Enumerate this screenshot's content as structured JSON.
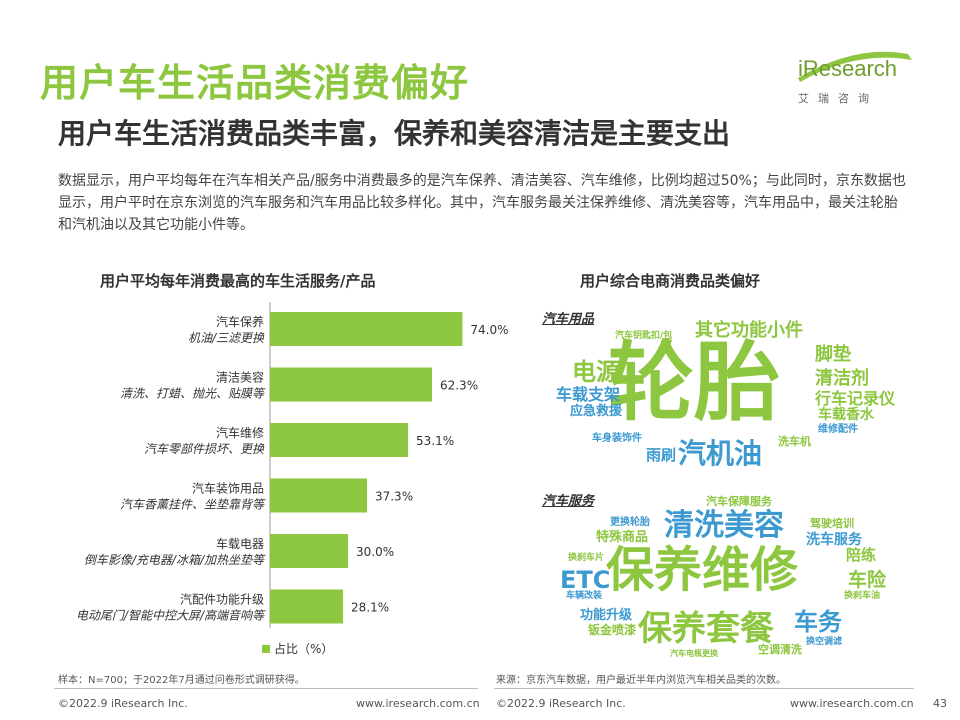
{
  "page": {
    "title": "用户车生活品类消费偏好",
    "subtitle": "用户车生活消费品类丰富，保养和美容清洁是主要支出",
    "description": "数据显示，用户平均每年在汽车相关产品/服务中消费最多的是汽车保养、清洁美容、汽车维修，比例均超过50%；与此同时，京东数据也显示，用户平时在京东浏览的汽车服务和汽车用品比较多样化。其中，汽车服务最关注保养维修、清洗美容等，汽车用品中，最关注轮胎和汽机油以及其它功能小件等。",
    "logo_text": "iResearch",
    "logo_sub": "艾瑞咨询",
    "page_number": "43"
  },
  "chart_data": [
    {
      "type": "bar",
      "orientation": "horizontal",
      "title": "用户平均每年消费最高的车生活服务/产品",
      "categories": [
        "汽车保养",
        "清洁美容",
        "汽车维修",
        "汽车装饰用品",
        "车载电器",
        "汽配件功能升级"
      ],
      "category_details": [
        "机油/三滤更换",
        "清洗、打蜡、抛光、贴膜等",
        "汽车零部件损坏、更换",
        "汽车香薰挂件、坐垫靠背等",
        "倒车影像/充电器/冰箱/加热坐垫等",
        "电动尾门/智能中控大屏/高端音响等"
      ],
      "series": [
        {
          "name": "占比（%）",
          "values": [
            74.0,
            62.3,
            53.1,
            37.3,
            30.0,
            28.1
          ],
          "labels": [
            "74.0%",
            "62.3%",
            "53.1%",
            "37.3%",
            "30.0%",
            "28.1%"
          ]
        }
      ],
      "xlim": [
        0,
        100
      ],
      "legend": "bottom",
      "color": "#8dc63f"
    },
    {
      "type": "wordcloud",
      "title": "用户综合电商消费品类偏好",
      "groups": [
        {
          "label": "汽车用品",
          "words": [
            {
              "text": "轮胎",
              "color": "#8dc63f"
            },
            {
              "text": "汽机油",
              "color": "#3d9ad1"
            },
            {
              "text": "其它功能小件",
              "color": "#8dc63f"
            },
            {
              "text": "电源",
              "color": "#8dc63f"
            },
            {
              "text": "脚垫",
              "color": "#8dc63f"
            },
            {
              "text": "清洁剂",
              "color": "#8dc63f"
            },
            {
              "text": "行车记录仪",
              "color": "#8dc63f"
            },
            {
              "text": "车载支架",
              "color": "#3d9ad1"
            },
            {
              "text": "应急救援",
              "color": "#3d9ad1"
            },
            {
              "text": "车载香水",
              "color": "#8dc63f"
            },
            {
              "text": "维修配件",
              "color": "#3d9ad1"
            },
            {
              "text": "洗车机",
              "color": "#8dc63f"
            },
            {
              "text": "雨刷",
              "color": "#3d9ad1"
            },
            {
              "text": "车身装饰件",
              "color": "#3d9ad1"
            },
            {
              "text": "汽车钥匙扣/包",
              "color": "#8dc63f"
            }
          ]
        },
        {
          "label": "汽车服务",
          "words": [
            {
              "text": "保养维修",
              "color": "#8dc63f"
            },
            {
              "text": "清洗美容",
              "color": "#3d9ad1"
            },
            {
              "text": "保养套餐",
              "color": "#8dc63f"
            },
            {
              "text": "ETC",
              "color": "#3d9ad1"
            },
            {
              "text": "车务",
              "color": "#3d9ad1"
            },
            {
              "text": "车险",
              "color": "#8dc63f"
            },
            {
              "text": "陪练",
              "color": "#8dc63f"
            },
            {
              "text": "洗车服务",
              "color": "#3d9ad1"
            },
            {
              "text": "驾驶培训",
              "color": "#8dc63f"
            },
            {
              "text": "特殊商品",
              "color": "#8dc63f"
            },
            {
              "text": "更换轮胎",
              "color": "#3d9ad1"
            },
            {
              "text": "汽车保障服务",
              "color": "#8dc63f"
            },
            {
              "text": "换刹车片",
              "color": "#8dc63f"
            },
            {
              "text": "车辆改装",
              "color": "#3d9ad1"
            },
            {
              "text": "功能升级",
              "color": "#3d9ad1"
            },
            {
              "text": "钣金喷漆",
              "color": "#8dc63f"
            },
            {
              "text": "空调清洗",
              "color": "#8dc63f"
            },
            {
              "text": "换空调滤",
              "color": "#3d9ad1"
            },
            {
              "text": "换刹车油",
              "color": "#8dc63f"
            },
            {
              "text": "汽车电瓶更换",
              "color": "#8dc63f"
            }
          ]
        }
      ]
    }
  ],
  "notes": {
    "left": "样本：N=700；于2022年7月通过问卷形式调研获得。",
    "right": "来源：京东汽车数据，用户最近半年内浏览汽车相关品类的次数。"
  },
  "footer": {
    "copyright_left": "©2022.9 iResearch Inc.",
    "site_left": "www.iresearch.com.cn",
    "copyright_right": "©2022.9 iResearch Inc.",
    "site_right": "www.iresearch.com.cn"
  }
}
